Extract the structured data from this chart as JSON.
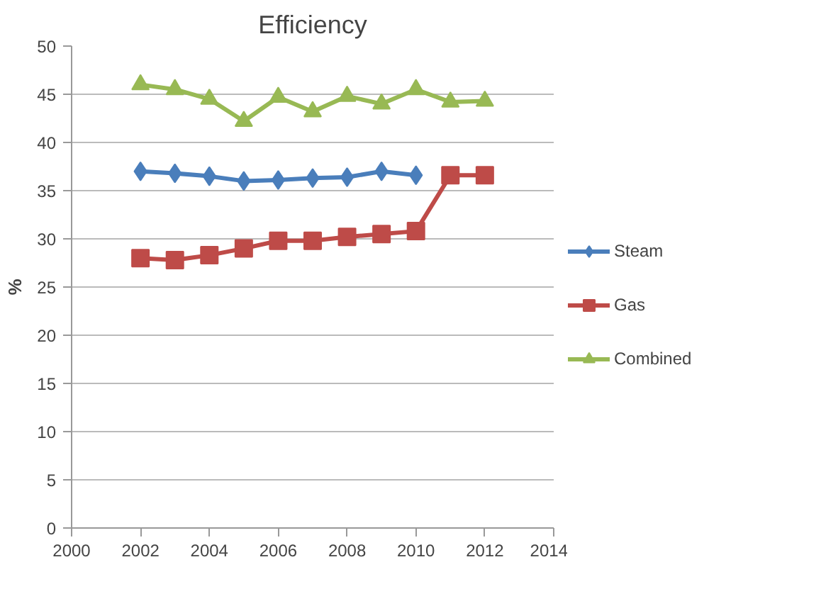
{
  "chart_data": {
    "type": "line",
    "title": "Efficiency",
    "ylabel": "%",
    "x": [
      2002,
      2003,
      2004,
      2005,
      2006,
      2007,
      2008,
      2009,
      2010,
      2011,
      2012
    ],
    "series": [
      {
        "name": "Steam",
        "color": "#4a7ebb",
        "marker": "diamond",
        "values": [
          37.0,
          36.8,
          36.5,
          36.0,
          36.1,
          36.3,
          36.4,
          37.0,
          36.6,
          null,
          null
        ]
      },
      {
        "name": "Gas",
        "color": "#be4b48",
        "marker": "square",
        "values": [
          28.0,
          27.8,
          28.3,
          29.0,
          29.8,
          29.8,
          30.2,
          30.5,
          30.8,
          36.6,
          36.6
        ]
      },
      {
        "name": "Combined",
        "color": "#98b954",
        "marker": "triangle",
        "values": [
          46.0,
          45.5,
          44.5,
          42.2,
          44.7,
          43.2,
          44.8,
          44.0,
          45.5,
          44.2,
          44.3
        ]
      }
    ],
    "xlim": [
      2000,
      2014
    ],
    "xticks": [
      2000,
      2002,
      2004,
      2006,
      2008,
      2010,
      2012,
      2014
    ],
    "ylim": [
      0,
      50
    ],
    "yticks": [
      0,
      5,
      10,
      15,
      20,
      25,
      30,
      35,
      40,
      45,
      50
    ],
    "grid": "y",
    "legend": "right",
    "line_style": "solid"
  }
}
